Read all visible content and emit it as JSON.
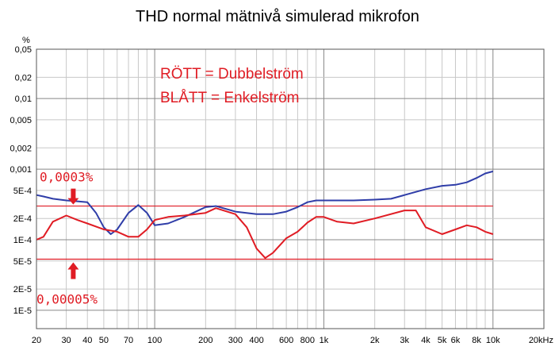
{
  "chart_data": {
    "type": "line",
    "title": "THD normal mätnivå simulerad mikrofon",
    "ylabel": "%",
    "xlabel": "",
    "xscale": "log",
    "yscale": "log",
    "xlim": [
      20,
      20000
    ],
    "ylim": [
      5.5e-06,
      0.05
    ],
    "grid": true,
    "legend_text": [
      "RÖTT  = Dubbelström",
      "BLÅTT = Enkelström"
    ],
    "xticks": [
      {
        "v": 20,
        "t": "20"
      },
      {
        "v": 30,
        "t": "30"
      },
      {
        "v": 40,
        "t": "40"
      },
      {
        "v": 50,
        "t": "50"
      },
      {
        "v": 70,
        "t": "70"
      },
      {
        "v": 100,
        "t": "100"
      },
      {
        "v": 200,
        "t": "200"
      },
      {
        "v": 300,
        "t": "300"
      },
      {
        "v": 400,
        "t": "400"
      },
      {
        "v": 600,
        "t": "600"
      },
      {
        "v": 800,
        "t": "800"
      },
      {
        "v": 1000,
        "t": "1k"
      },
      {
        "v": 2000,
        "t": "2k"
      },
      {
        "v": 3000,
        "t": "3k"
      },
      {
        "v": 4000,
        "t": "4k"
      },
      {
        "v": 5000,
        "t": "5k"
      },
      {
        "v": 6000,
        "t": "6k"
      },
      {
        "v": 8000,
        "t": "8k"
      },
      {
        "v": 10000,
        "t": "10k"
      },
      {
        "v": 20000,
        "t": "20kHz"
      }
    ],
    "yticks": [
      {
        "v": 0.05,
        "t": "0,05"
      },
      {
        "v": 0.02,
        "t": "0,02"
      },
      {
        "v": 0.01,
        "t": "0,01"
      },
      {
        "v": 0.005,
        "t": "0,005"
      },
      {
        "v": 0.002,
        "t": "0,002"
      },
      {
        "v": 0.001,
        "t": "0,001"
      },
      {
        "v": 0.0005,
        "t": "5E-4"
      },
      {
        "v": 0.0002,
        "t": "2E-4"
      },
      {
        "v": 0.0001,
        "t": "1E-4"
      },
      {
        "v": 5e-05,
        "t": "5E-5"
      },
      {
        "v": 2e-05,
        "t": "2E-5"
      },
      {
        "v": 1e-05,
        "t": "1E-5"
      }
    ],
    "reference_lines": [
      {
        "label": "0,0003%",
        "value": 0.0003,
        "color": "#e01c24"
      },
      {
        "label": "0,00005%",
        "value": 5.3e-05,
        "color": "#e01c24"
      }
    ],
    "series": [
      {
        "color": "#2f3da8",
        "x": [
          20,
          22,
          25,
          30,
          35,
          40,
          45,
          50,
          55,
          60,
          70,
          80,
          90,
          100,
          120,
          150,
          200,
          230,
          300,
          400,
          500,
          600,
          700,
          800,
          900,
          1000,
          1500,
          2000,
          2500,
          3000,
          4000,
          5000,
          6000,
          7000,
          8000,
          9000,
          10000
        ],
        "values": [
          0.00043,
          0.00041,
          0.00038,
          0.00036,
          0.00035,
          0.00034,
          0.00024,
          0.00015,
          0.00012,
          0.00014,
          0.00024,
          0.00031,
          0.00024,
          0.00016,
          0.00017,
          0.00021,
          0.00029,
          0.0003,
          0.00025,
          0.00023,
          0.00023,
          0.00025,
          0.00029,
          0.00034,
          0.00036,
          0.00036,
          0.00036,
          0.00037,
          0.00038,
          0.00043,
          0.00052,
          0.00058,
          0.0006,
          0.00065,
          0.00075,
          0.00087,
          0.00093
        ]
      },
      {
        "color": "#e01c24",
        "x": [
          20,
          22,
          25,
          30,
          35,
          40,
          50,
          60,
          70,
          80,
          90,
          100,
          120,
          150,
          200,
          230,
          300,
          350,
          400,
          450,
          500,
          600,
          700,
          800,
          900,
          1000,
          1200,
          1500,
          2000,
          3000,
          3500,
          4000,
          5000,
          6000,
          7000,
          8000,
          9000,
          10000
        ],
        "values": [
          0.0001,
          0.00011,
          0.00018,
          0.00022,
          0.00019,
          0.00017,
          0.00014,
          0.00013,
          0.00011,
          0.00011,
          0.00014,
          0.00019,
          0.00021,
          0.00022,
          0.00024,
          0.00028,
          0.00023,
          0.00015,
          7.5e-05,
          5.5e-05,
          6.5e-05,
          0.000105,
          0.00013,
          0.000175,
          0.00021,
          0.00021,
          0.00018,
          0.00017,
          0.0002,
          0.00026,
          0.00026,
          0.00015,
          0.00012,
          0.00014,
          0.00016,
          0.00015,
          0.00013,
          0.00012
        ]
      }
    ]
  }
}
